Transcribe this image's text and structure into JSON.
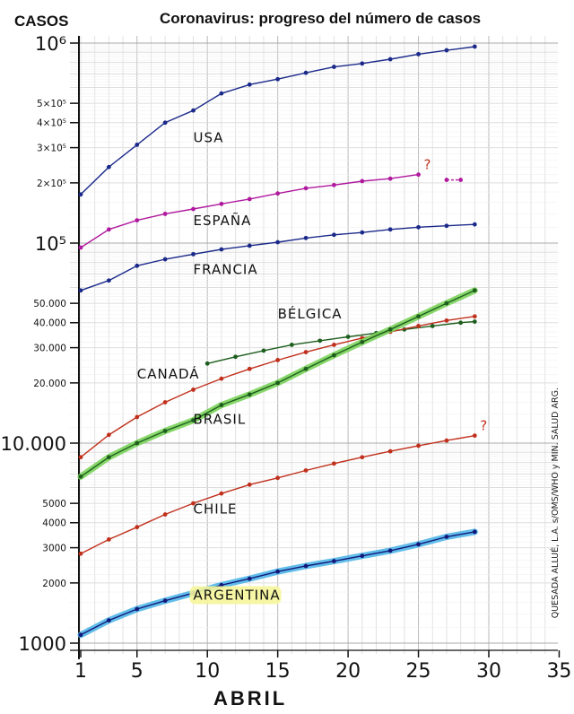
{
  "header": {
    "ylabel": "CASOS",
    "title": "Coronavirus: progreso del número de casos"
  },
  "footer": {
    "xlabel": "ABRIL"
  },
  "credit": "QUESADA ALLUÉ, L.A. s/OMS/WHO y MIN. SALUD ARG.",
  "chart_data": {
    "type": "line",
    "title": "Coronavirus: progreso del número de casos",
    "xlabel": "ABRIL",
    "ylabel": "CASOS",
    "yscale": "log",
    "ylim": [
      1000,
      1000000
    ],
    "xlim": [
      0,
      35
    ],
    "grid": true,
    "x_ticks": [
      "1",
      "5",
      "10",
      "15",
      "20",
      "25",
      "30",
      "35"
    ],
    "x_tick_values": [
      1,
      5,
      10,
      15,
      20,
      25,
      30,
      35
    ],
    "y_ticks": [
      {
        "value": 1000000,
        "label": "10⁶"
      },
      {
        "value": 500000,
        "label": "5×10⁵"
      },
      {
        "value": 400000,
        "label": "4×10⁵"
      },
      {
        "value": 300000,
        "label": "3×10⁵"
      },
      {
        "value": 200000,
        "label": "2×10⁵"
      },
      {
        "value": 100000,
        "label": "10⁵"
      },
      {
        "value": 50000,
        "label": "50.000"
      },
      {
        "value": 40000,
        "label": "40.000"
      },
      {
        "value": 30000,
        "label": "30.000"
      },
      {
        "value": 20000,
        "label": "20.000"
      },
      {
        "value": 10000,
        "label": "10.000"
      },
      {
        "value": 5000,
        "label": "5000"
      },
      {
        "value": 4000,
        "label": "4000"
      },
      {
        "value": 3000,
        "label": "3000"
      },
      {
        "value": 2000,
        "label": "2000"
      },
      {
        "value": 1000,
        "label": "1000"
      }
    ],
    "series": [
      {
        "name": "USA",
        "color": "#1b2a8a",
        "highlight": "",
        "label_x": 9,
        "label_y": 320000,
        "x": [
          1,
          3,
          5,
          7,
          9,
          11,
          13,
          15,
          17,
          19,
          21,
          23,
          25,
          27,
          29
        ],
        "values": [
          175000,
          240000,
          310000,
          400000,
          460000,
          560000,
          620000,
          660000,
          710000,
          760000,
          790000,
          830000,
          880000,
          920000,
          960000
        ]
      },
      {
        "name": "ESPAÑA",
        "color": "#b0199e",
        "highlight": "",
        "label_x": 9,
        "label_y": 123000,
        "x": [
          1,
          3,
          5,
          7,
          9,
          11,
          13,
          15,
          17,
          19,
          21,
          23,
          25
        ],
        "values": [
          95000,
          117000,
          130000,
          140000,
          148000,
          157000,
          166000,
          177000,
          188000,
          195000,
          204000,
          210000,
          220000
        ],
        "annotation": "?",
        "extra_x": [
          27,
          28
        ],
        "extra_values": [
          207000,
          207000
        ]
      },
      {
        "name": "FRANCIA",
        "color": "#1b2a8a",
        "highlight": "",
        "label_x": 9,
        "label_y": 70000,
        "x": [
          1,
          3,
          5,
          7,
          9,
          11,
          13,
          15,
          17,
          19,
          21,
          23,
          25,
          27,
          29
        ],
        "values": [
          58000,
          65000,
          77000,
          83000,
          88000,
          93000,
          97000,
          101000,
          106000,
          110000,
          113000,
          117000,
          120000,
          122000,
          124000
        ]
      },
      {
        "name": "BÉLGICA",
        "color": "#1e5e1e",
        "highlight": "",
        "label_x": 15,
        "label_y": 42000,
        "x": [
          10,
          12,
          14,
          16,
          18,
          20,
          22,
          24,
          26,
          28,
          29
        ],
        "values": [
          25000,
          27000,
          29000,
          31000,
          32500,
          34000,
          35500,
          37000,
          38500,
          40000,
          40500
        ]
      },
      {
        "name": "CANADÁ",
        "color": "#c0301c",
        "highlight": "",
        "label_x": 5,
        "label_y": 21000,
        "x": [
          1,
          3,
          5,
          7,
          9,
          11,
          13,
          15,
          17,
          19,
          21,
          23,
          25,
          27,
          29
        ],
        "values": [
          8500,
          11000,
          13500,
          16000,
          18500,
          21000,
          23500,
          26000,
          28500,
          31000,
          33500,
          36000,
          38500,
          41000,
          43000
        ]
      },
      {
        "name": "BRASIL",
        "color": "#1e5e1e",
        "highlight": "#7ad35a",
        "label_x": 9,
        "label_y": 12500,
        "x": [
          1,
          3,
          5,
          7,
          9,
          11,
          13,
          15,
          17,
          19,
          21,
          23,
          25,
          27,
          29
        ],
        "values": [
          6800,
          8500,
          10000,
          11500,
          13000,
          15500,
          17500,
          20000,
          23500,
          27500,
          32000,
          37000,
          43000,
          50000,
          58000
        ]
      },
      {
        "name": "CHILE",
        "color": "#c0301c",
        "highlight": "",
        "label_x": 9,
        "label_y": 4450,
        "x": [
          1,
          3,
          5,
          7,
          9,
          11,
          13,
          15,
          17,
          19,
          21,
          23,
          25,
          27,
          29
        ],
        "values": [
          2800,
          3300,
          3800,
          4400,
          5000,
          5600,
          6200,
          6700,
          7300,
          7900,
          8500,
          9100,
          9700,
          10300,
          10900
        ],
        "annotation": "?"
      },
      {
        "name": "ARGENTINA",
        "color": "#13197a",
        "highlight": "#4fb6e8",
        "label_x": 9,
        "label_y": 1650,
        "x": [
          1,
          3,
          5,
          7,
          9,
          11,
          13,
          15,
          17,
          19,
          21,
          23,
          25,
          27,
          29
        ],
        "values": [
          1100,
          1300,
          1480,
          1630,
          1780,
          1950,
          2100,
          2280,
          2430,
          2570,
          2730,
          2900,
          3120,
          3400,
          3600
        ]
      }
    ]
  }
}
